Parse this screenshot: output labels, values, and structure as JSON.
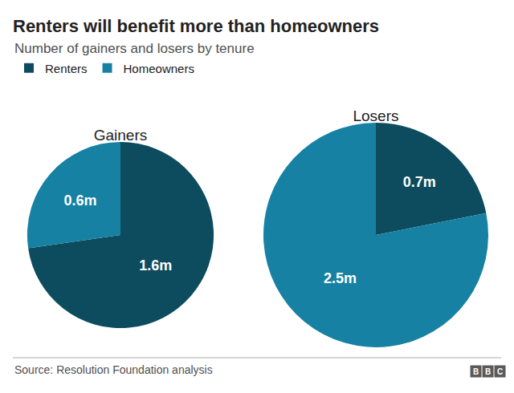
{
  "header": {
    "title": "Renters will benefit more than homeowners",
    "subtitle": "Number of gainers and losers by tenure"
  },
  "chart_data": [
    {
      "type": "pie",
      "title": "Gainers",
      "categories": [
        "Renters",
        "Homeowners"
      ],
      "values": [
        1.6,
        0.6
      ],
      "value_labels": [
        "1.6m",
        "0.6m"
      ],
      "colors": [
        "#0d4b5e",
        "#1681a2"
      ],
      "data_labels": true,
      "legend": "top left"
    },
    {
      "type": "pie",
      "title": "Losers",
      "categories": [
        "Renters",
        "Homeowners"
      ],
      "values": [
        0.7,
        2.5
      ],
      "value_labels": [
        "0.7m",
        "2.5m"
      ],
      "colors": [
        "#0d4b5e",
        "#1681a2"
      ],
      "data_labels": true,
      "legend": "top left"
    }
  ],
  "footer": {
    "source": "Source: Resolution Foundation analysis",
    "logo": "BBC"
  }
}
